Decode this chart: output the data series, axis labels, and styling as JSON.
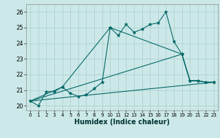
{
  "title": "",
  "xlabel": "Humidex (Indice chaleur)",
  "background_color": "#cce8e8",
  "grid_color": "#aacccc",
  "line_color": "#006666",
  "xlim": [
    -0.5,
    23.5
  ],
  "ylim": [
    19.7,
    26.5
  ],
  "x_ticks": [
    0,
    1,
    2,
    3,
    4,
    5,
    6,
    7,
    8,
    9,
    10,
    11,
    12,
    13,
    14,
    15,
    16,
    17,
    18,
    19,
    20,
    21,
    22,
    23
  ],
  "y_ticks": [
    20,
    21,
    22,
    23,
    24,
    25,
    26
  ],
  "line1_x": [
    0,
    1,
    2,
    3,
    4,
    5,
    6,
    7,
    8,
    9,
    10,
    11,
    12,
    13,
    14,
    15,
    16,
    17,
    18,
    19,
    20,
    21,
    22,
    23
  ],
  "line1_y": [
    20.3,
    20.0,
    20.9,
    20.9,
    21.2,
    20.8,
    20.6,
    20.7,
    21.1,
    21.5,
    25.0,
    24.5,
    25.2,
    24.7,
    24.9,
    25.2,
    25.3,
    26.0,
    24.1,
    23.3,
    21.6,
    21.6,
    21.5,
    21.5
  ],
  "line2_x": [
    0,
    4,
    10,
    19,
    20,
    21,
    22,
    23
  ],
  "line2_y": [
    20.3,
    21.2,
    25.0,
    23.3,
    21.6,
    21.6,
    21.5,
    21.5
  ],
  "line3_x": [
    0,
    19,
    20,
    21,
    22,
    23
  ],
  "line3_y": [
    20.3,
    23.3,
    21.6,
    21.6,
    21.5,
    21.5
  ],
  "line4_x": [
    0,
    23
  ],
  "line4_y": [
    20.3,
    21.5
  ]
}
